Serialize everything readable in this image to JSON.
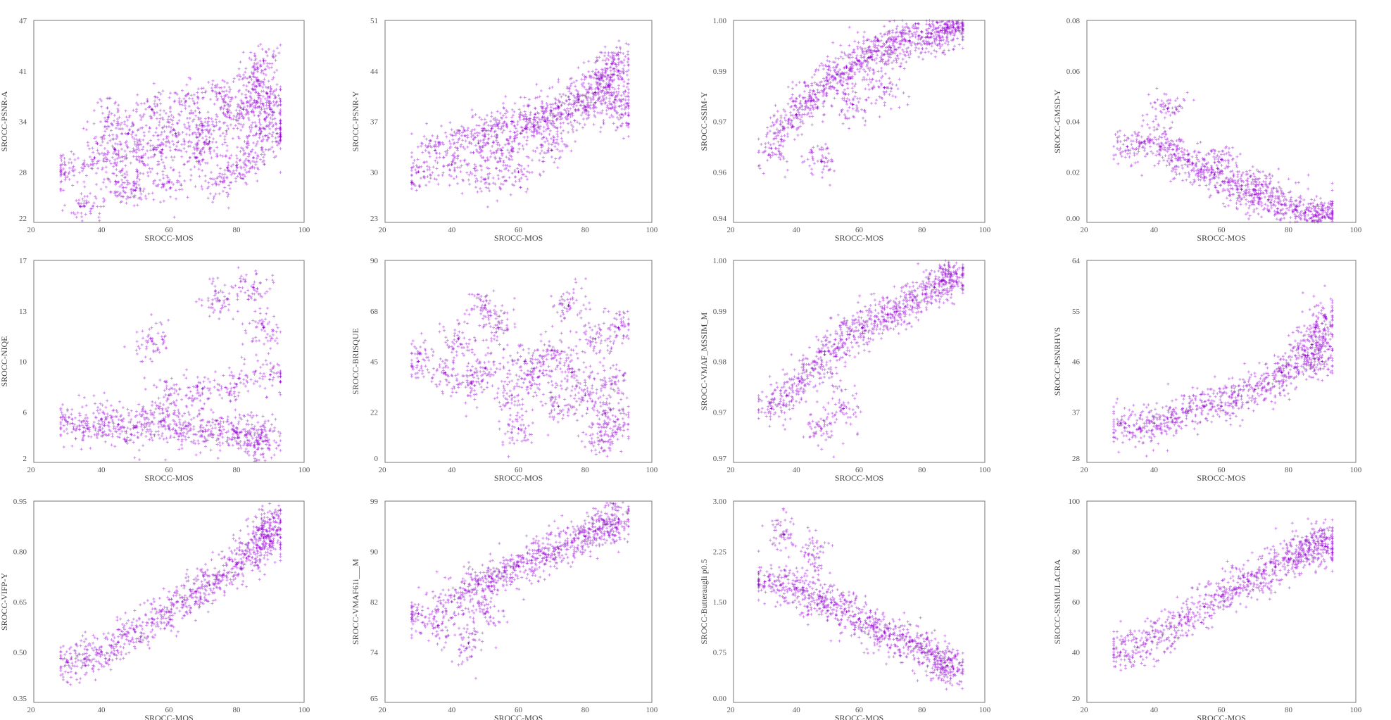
{
  "marker_color": "#9400D3",
  "marker": "plus",
  "chart_data": [
    {
      "type": "scatter",
      "xlabel": "SROCC-MOS",
      "ylabel": "SROCC-PSNR-A",
      "xlim": [
        20,
        100
      ],
      "ylim": [
        22,
        47
      ],
      "xticks": [
        "20",
        "40",
        "60",
        "80",
        "100"
      ],
      "yticks": [
        "22",
        "28",
        "34",
        "41",
        "47"
      ],
      "points": [
        [
          29,
          28
        ],
        [
          35,
          24
        ],
        [
          38,
          30
        ],
        [
          42,
          35
        ],
        [
          45,
          27
        ],
        [
          48,
          33
        ],
        [
          52,
          30
        ],
        [
          55,
          36
        ],
        [
          58,
          31
        ],
        [
          62,
          33
        ],
        [
          65,
          37
        ],
        [
          68,
          30
        ],
        [
          70,
          34
        ],
        [
          72,
          32
        ],
        [
          75,
          38
        ],
        [
          78,
          35
        ],
        [
          80,
          29
        ],
        [
          82,
          36
        ],
        [
          84,
          40
        ],
        [
          86,
          37
        ],
        [
          87,
          33
        ],
        [
          88,
          42
        ],
        [
          89,
          38
        ],
        [
          90,
          36
        ],
        [
          85,
          30
        ],
        [
          76,
          27
        ],
        [
          60,
          27
        ],
        [
          50,
          26
        ],
        [
          44,
          31
        ],
        [
          92,
          33
        ]
      ]
    },
    {
      "type": "scatter",
      "xlabel": "SROCC-MOS",
      "ylabel": "SROCC-PSNR-Y",
      "xlim": [
        20,
        100
      ],
      "ylim": [
        23,
        51
      ],
      "xticks": [
        "20",
        "40",
        "60",
        "80",
        "100"
      ],
      "yticks": [
        "23",
        "30",
        "37",
        "44",
        "51"
      ],
      "points": [
        [
          30,
          30
        ],
        [
          35,
          33
        ],
        [
          40,
          31
        ],
        [
          44,
          35
        ],
        [
          48,
          34
        ],
        [
          52,
          36
        ],
        [
          55,
          33
        ],
        [
          58,
          37
        ],
        [
          62,
          36
        ],
        [
          65,
          38
        ],
        [
          68,
          37
        ],
        [
          72,
          39
        ],
        [
          75,
          38
        ],
        [
          78,
          40
        ],
        [
          80,
          39
        ],
        [
          83,
          41
        ],
        [
          85,
          43
        ],
        [
          87,
          42
        ],
        [
          88,
          45
        ],
        [
          89,
          40
        ],
        [
          90,
          44
        ],
        [
          91,
          38
        ],
        [
          60,
          30
        ],
        [
          70,
          33
        ],
        [
          50,
          29
        ]
      ]
    },
    {
      "type": "scatter",
      "xlabel": "SROCC-MOS",
      "ylabel": "SROCC-SSIM-Y",
      "xlim": [
        20,
        100
      ],
      "ylim": [
        0.94,
        1.0
      ],
      "xticks": [
        "20",
        "40",
        "60",
        "80",
        "100"
      ],
      "yticks": [
        "0.94",
        "0.96",
        "0.97",
        "0.99",
        "1.00"
      ],
      "points": [
        [
          32,
          0.962
        ],
        [
          36,
          0.968
        ],
        [
          40,
          0.972
        ],
        [
          43,
          0.976
        ],
        [
          46,
          0.978
        ],
        [
          50,
          0.982
        ],
        [
          53,
          0.984
        ],
        [
          56,
          0.986
        ],
        [
          60,
          0.988
        ],
        [
          63,
          0.989
        ],
        [
          66,
          0.991
        ],
        [
          70,
          0.992
        ],
        [
          73,
          0.993
        ],
        [
          76,
          0.994
        ],
        [
          80,
          0.995
        ],
        [
          83,
          0.996
        ],
        [
          86,
          0.997
        ],
        [
          88,
          0.998
        ],
        [
          90,
          0.998
        ],
        [
          91,
          0.999
        ],
        [
          48,
          0.958
        ],
        [
          58,
          0.975
        ],
        [
          68,
          0.98
        ]
      ]
    },
    {
      "type": "scatter",
      "xlabel": "SROCC-MOS",
      "ylabel": "SROCC-GMSD-Y",
      "xlim": [
        20,
        100
      ],
      "ylim": [
        0.0,
        0.08
      ],
      "xticks": [
        "20",
        "40",
        "60",
        "80",
        "100"
      ],
      "yticks": [
        "0.00",
        "0.02",
        "0.04",
        "0.06",
        "0.08"
      ],
      "points": [
        [
          32,
          0.03
        ],
        [
          38,
          0.033
        ],
        [
          42,
          0.03
        ],
        [
          46,
          0.027
        ],
        [
          50,
          0.024
        ],
        [
          54,
          0.021
        ],
        [
          58,
          0.019
        ],
        [
          62,
          0.016
        ],
        [
          66,
          0.013
        ],
        [
          70,
          0.011
        ],
        [
          74,
          0.009
        ],
        [
          78,
          0.007
        ],
        [
          82,
          0.005
        ],
        [
          85,
          0.004
        ],
        [
          88,
          0.003
        ],
        [
          90,
          0.002
        ],
        [
          92,
          0.002
        ],
        [
          60,
          0.025
        ],
        [
          72,
          0.015
        ],
        [
          44,
          0.045
        ]
      ]
    },
    {
      "type": "scatter",
      "xlabel": "SROCC-MOS",
      "ylabel": "SROCC-NIQE",
      "xlim": [
        20,
        100
      ],
      "ylim": [
        2,
        17
      ],
      "xticks": [
        "20",
        "40",
        "60",
        "80",
        "100"
      ],
      "yticks": [
        "2",
        "6",
        "10",
        "13",
        "17"
      ],
      "points": [
        [
          30,
          5
        ],
        [
          36,
          4.5
        ],
        [
          40,
          5.2
        ],
        [
          45,
          4.8
        ],
        [
          50,
          4.6
        ],
        [
          55,
          5
        ],
        [
          60,
          4.5
        ],
        [
          65,
          4.7
        ],
        [
          70,
          4.3
        ],
        [
          75,
          4.4
        ],
        [
          80,
          4.2
        ],
        [
          84,
          4.1
        ],
        [
          87,
          3.8
        ],
        [
          89,
          3.6
        ],
        [
          90,
          8.5
        ],
        [
          60,
          7
        ],
        [
          70,
          7.5
        ],
        [
          80,
          7.8
        ],
        [
          55,
          11
        ],
        [
          75,
          14
        ],
        [
          85,
          15
        ],
        [
          88,
          12
        ]
      ]
    },
    {
      "type": "scatter",
      "xlabel": "SROCC-MOS",
      "ylabel": "SROCC-BRISQUE",
      "xlim": [
        20,
        100
      ],
      "ylim": [
        0,
        90
      ],
      "xticks": [
        "20",
        "40",
        "60",
        "80",
        "100"
      ],
      "yticks": [
        "0",
        "22",
        "45",
        "68",
        "90"
      ],
      "points": [
        [
          30,
          45
        ],
        [
          38,
          40
        ],
        [
          42,
          55
        ],
        [
          46,
          35
        ],
        [
          50,
          42
        ],
        [
          54,
          60
        ],
        [
          58,
          30
        ],
        [
          62,
          45
        ],
        [
          66,
          38
        ],
        [
          70,
          50
        ],
        [
          72,
          25
        ],
        [
          76,
          40
        ],
        [
          80,
          30
        ],
        [
          83,
          55
        ],
        [
          86,
          22
        ],
        [
          88,
          35
        ],
        [
          89,
          18
        ],
        [
          90,
          60
        ],
        [
          60,
          15
        ],
        [
          50,
          70
        ],
        [
          75,
          70
        ],
        [
          85,
          10
        ]
      ]
    },
    {
      "type": "scatter",
      "xlabel": "SROCC-MOS",
      "ylabel": "SROCC-VMAF_MSSIM_M",
      "xlim": [
        20,
        100
      ],
      "ylim": [
        0.97,
        1.0
      ],
      "xticks": [
        "20",
        "40",
        "60",
        "80",
        "100"
      ],
      "yticks": [
        "0.97",
        "0.97",
        "0.98",
        "0.99",
        "1.00"
      ],
      "points": [
        [
          32,
          0.978
        ],
        [
          37,
          0.98
        ],
        [
          41,
          0.982
        ],
        [
          45,
          0.984
        ],
        [
          49,
          0.986
        ],
        [
          53,
          0.987
        ],
        [
          57,
          0.989
        ],
        [
          61,
          0.99
        ],
        [
          65,
          0.991
        ],
        [
          69,
          0.992
        ],
        [
          73,
          0.993
        ],
        [
          77,
          0.994
        ],
        [
          81,
          0.995
        ],
        [
          84,
          0.996
        ],
        [
          87,
          0.997
        ],
        [
          89,
          0.998
        ],
        [
          91,
          0.998
        ],
        [
          55,
          0.978
        ],
        [
          48,
          0.975
        ]
      ]
    },
    {
      "type": "scatter",
      "xlabel": "SROCC-MOS",
      "ylabel": "SROCC-PSNRHVS",
      "xlim": [
        20,
        100
      ],
      "ylim": [
        28,
        64
      ],
      "xticks": [
        "20",
        "40",
        "60",
        "80",
        "100"
      ],
      "yticks": [
        "28",
        "37",
        "46",
        "55",
        "64"
      ],
      "points": [
        [
          30,
          35
        ],
        [
          36,
          34
        ],
        [
          40,
          35
        ],
        [
          45,
          36
        ],
        [
          50,
          37
        ],
        [
          55,
          38
        ],
        [
          60,
          38
        ],
        [
          65,
          40
        ],
        [
          70,
          41
        ],
        [
          74,
          42
        ],
        [
          78,
          44
        ],
        [
          82,
          45
        ],
        [
          85,
          47
        ],
        [
          87,
          49
        ],
        [
          88,
          52
        ],
        [
          89,
          48
        ],
        [
          90,
          46
        ],
        [
          91,
          54
        ]
      ]
    },
    {
      "type": "scatter",
      "xlabel": "SROCC-MOS",
      "ylabel": "SROCC-VIFP-Y",
      "xlim": [
        20,
        100
      ],
      "ylim": [
        0.35,
        0.95
      ],
      "xticks": [
        "20",
        "40",
        "60",
        "80",
        "100"
      ],
      "yticks": [
        "0.35",
        "0.50",
        "0.65",
        "0.80",
        "0.95"
      ],
      "points": [
        [
          30,
          0.47
        ],
        [
          35,
          0.48
        ],
        [
          40,
          0.5
        ],
        [
          45,
          0.53
        ],
        [
          50,
          0.56
        ],
        [
          55,
          0.6
        ],
        [
          60,
          0.62
        ],
        [
          64,
          0.65
        ],
        [
          68,
          0.68
        ],
        [
          72,
          0.7
        ],
        [
          76,
          0.73
        ],
        [
          80,
          0.76
        ],
        [
          83,
          0.78
        ],
        [
          86,
          0.81
        ],
        [
          88,
          0.84
        ],
        [
          89,
          0.86
        ],
        [
          90,
          0.83
        ],
        [
          91,
          0.9
        ]
      ]
    },
    {
      "type": "scatter",
      "xlabel": "SROCC-MOS",
      "ylabel": "SROCC-VMAF61i___M",
      "xlim": [
        20,
        100
      ],
      "ylim": [
        65,
        99
      ],
      "xticks": [
        "20",
        "40",
        "60",
        "80",
        "100"
      ],
      "yticks": [
        "65",
        "74",
        "82",
        "90",
        "99"
      ],
      "points": [
        [
          30,
          80
        ],
        [
          36,
          78
        ],
        [
          40,
          82
        ],
        [
          44,
          84
        ],
        [
          48,
          85
        ],
        [
          52,
          86
        ],
        [
          56,
          87
        ],
        [
          60,
          88
        ],
        [
          64,
          89
        ],
        [
          68,
          90
        ],
        [
          72,
          91
        ],
        [
          76,
          92
        ],
        [
          80,
          93
        ],
        [
          83,
          94
        ],
        [
          86,
          95
        ],
        [
          88,
          95
        ],
        [
          90,
          96
        ],
        [
          50,
          80
        ],
        [
          45,
          75
        ]
      ]
    },
    {
      "type": "scatter",
      "xlabel": "SROCC-MOS",
      "ylabel": "SROCC-Butteraugli p0.5",
      "xlim": [
        20,
        100
      ],
      "ylim": [
        0.0,
        3.0
      ],
      "xticks": [
        "20",
        "40",
        "60",
        "80",
        "100"
      ],
      "yticks": [
        "0.00",
        "0.75",
        "1.50",
        "2.25",
        "3.00"
      ],
      "points": [
        [
          30,
          1.8
        ],
        [
          35,
          1.75
        ],
        [
          40,
          1.7
        ],
        [
          44,
          1.6
        ],
        [
          48,
          1.5
        ],
        [
          52,
          1.45
        ],
        [
          56,
          1.35
        ],
        [
          60,
          1.25
        ],
        [
          64,
          1.15
        ],
        [
          68,
          1.05
        ],
        [
          72,
          0.95
        ],
        [
          76,
          0.9
        ],
        [
          80,
          0.8
        ],
        [
          83,
          0.72
        ],
        [
          86,
          0.62
        ],
        [
          88,
          0.55
        ],
        [
          90,
          0.5
        ],
        [
          36,
          2.5
        ],
        [
          45,
          2.2
        ]
      ]
    },
    {
      "type": "scatter",
      "xlabel": "SROCC-MOS",
      "ylabel": "SROCC-SSIMULACRA",
      "xlim": [
        20,
        100
      ],
      "ylim": [
        20,
        100
      ],
      "xticks": [
        "20",
        "40",
        "60",
        "80",
        "100"
      ],
      "yticks": [
        "20",
        "40",
        "60",
        "80",
        "100"
      ],
      "points": [
        [
          30,
          40
        ],
        [
          35,
          42
        ],
        [
          40,
          46
        ],
        [
          45,
          50
        ],
        [
          50,
          54
        ],
        [
          55,
          58
        ],
        [
          60,
          62
        ],
        [
          64,
          65
        ],
        [
          68,
          68
        ],
        [
          72,
          71
        ],
        [
          76,
          74
        ],
        [
          80,
          77
        ],
        [
          83,
          79
        ],
        [
          86,
          81
        ],
        [
          88,
          83
        ],
        [
          90,
          84
        ],
        [
          91,
          82
        ]
      ]
    }
  ]
}
